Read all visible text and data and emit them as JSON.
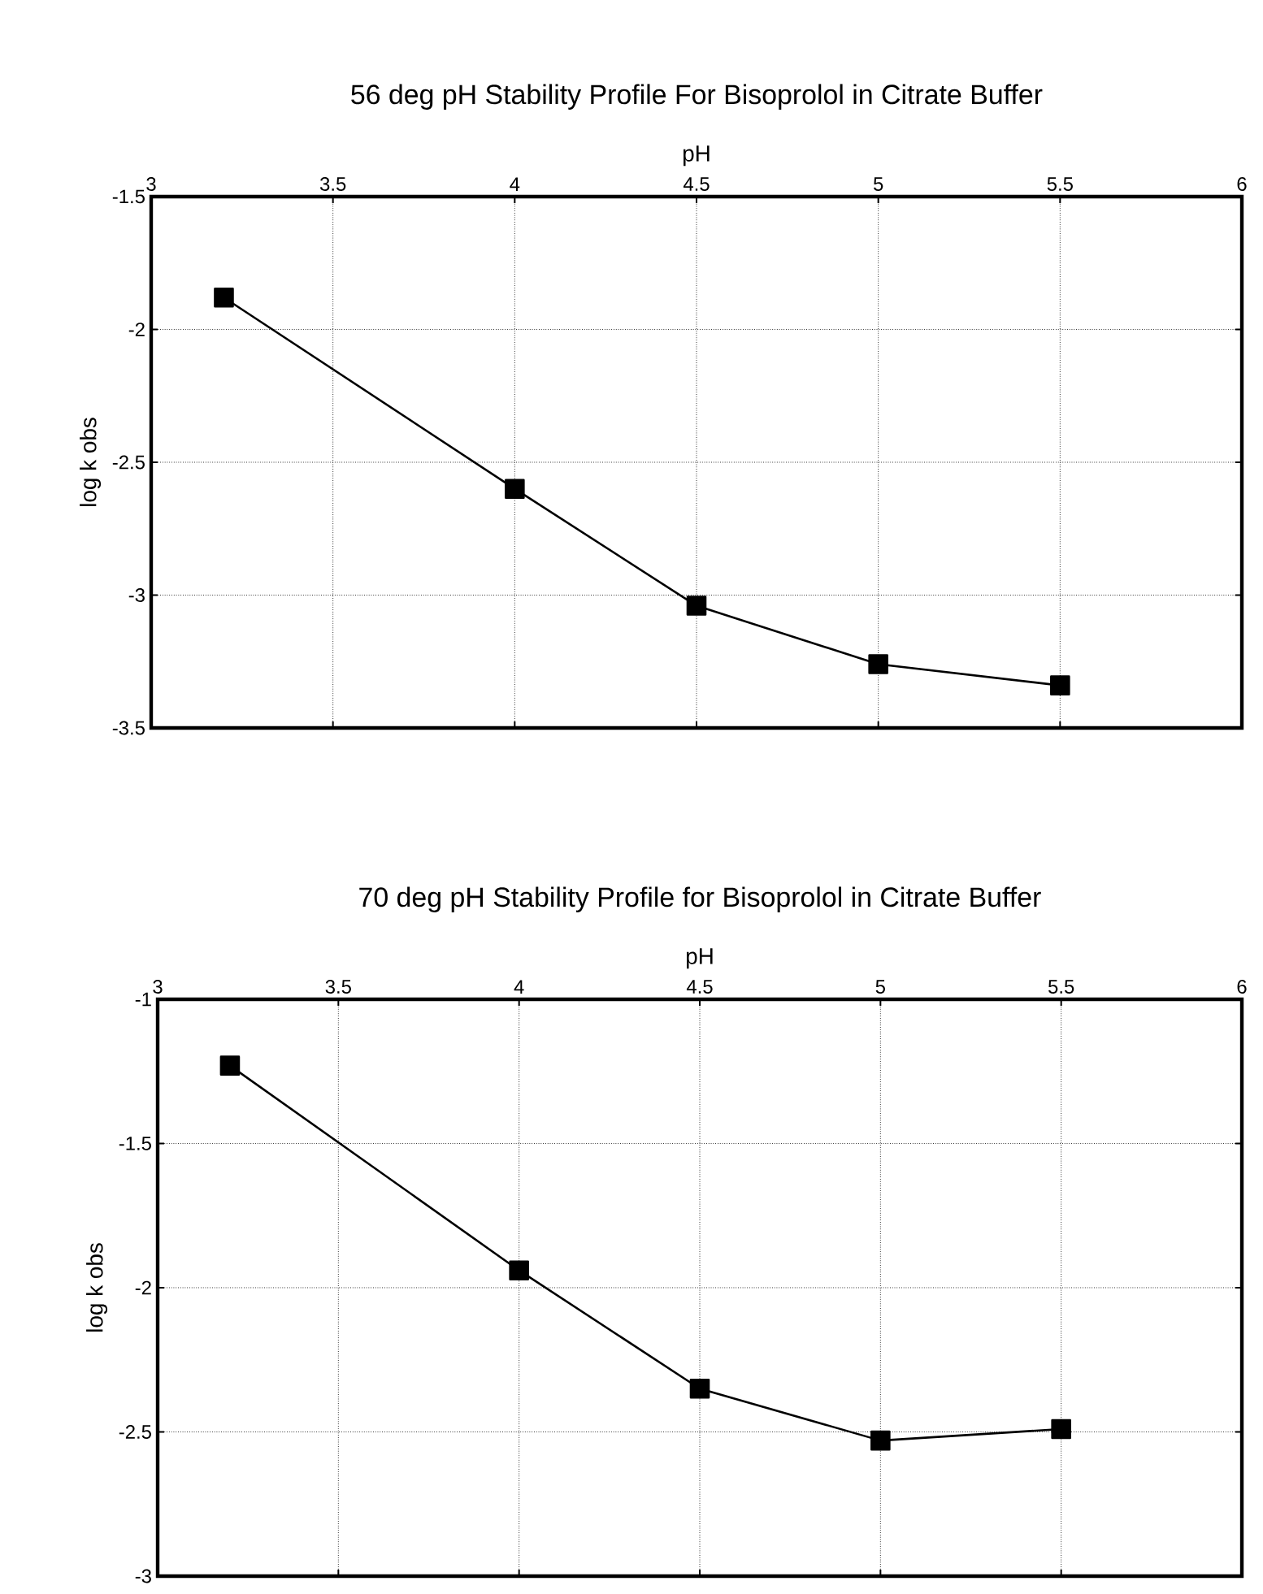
{
  "chart_data": [
    {
      "type": "line",
      "title": "56 deg pH Stability Profile For Bisoprolol in Citrate Buffer",
      "xlabel": "pH",
      "ylabel": "log k obs",
      "x": [
        3.2,
        4,
        4.5,
        5,
        5.5
      ],
      "values": [
        -1.88,
        -2.6,
        -3.04,
        -3.26,
        -3.34
      ],
      "color": "#000000",
      "xlim": [
        3,
        6
      ],
      "ylim": [
        -3.5,
        -1.5
      ],
      "xticks": [
        3,
        3.5,
        4,
        4.5,
        5,
        5.5,
        6
      ],
      "yticks": [
        -3.5,
        -3,
        -2.5,
        -2,
        -1.5
      ],
      "grid": true,
      "marker": "square",
      "line_style": "solid"
    },
    {
      "type": "line",
      "title": "70 deg pH Stability Profile for Bisoprolol in Citrate Buffer",
      "xlabel": "pH",
      "ylabel": "log k obs",
      "x": [
        3.2,
        4,
        4.5,
        5,
        5.5
      ],
      "values": [
        -1.23,
        -1.94,
        -2.35,
        -2.53,
        -2.49
      ],
      "color": "#000000",
      "xlim": [
        3,
        6
      ],
      "ylim": [
        -3,
        -1
      ],
      "xticks": [
        3,
        3.5,
        4,
        4.5,
        5,
        5.5,
        6
      ],
      "yticks": [
        -3,
        -2.5,
        -2,
        -1.5,
        -1
      ],
      "grid": true,
      "marker": "square",
      "line_style": "solid"
    }
  ]
}
